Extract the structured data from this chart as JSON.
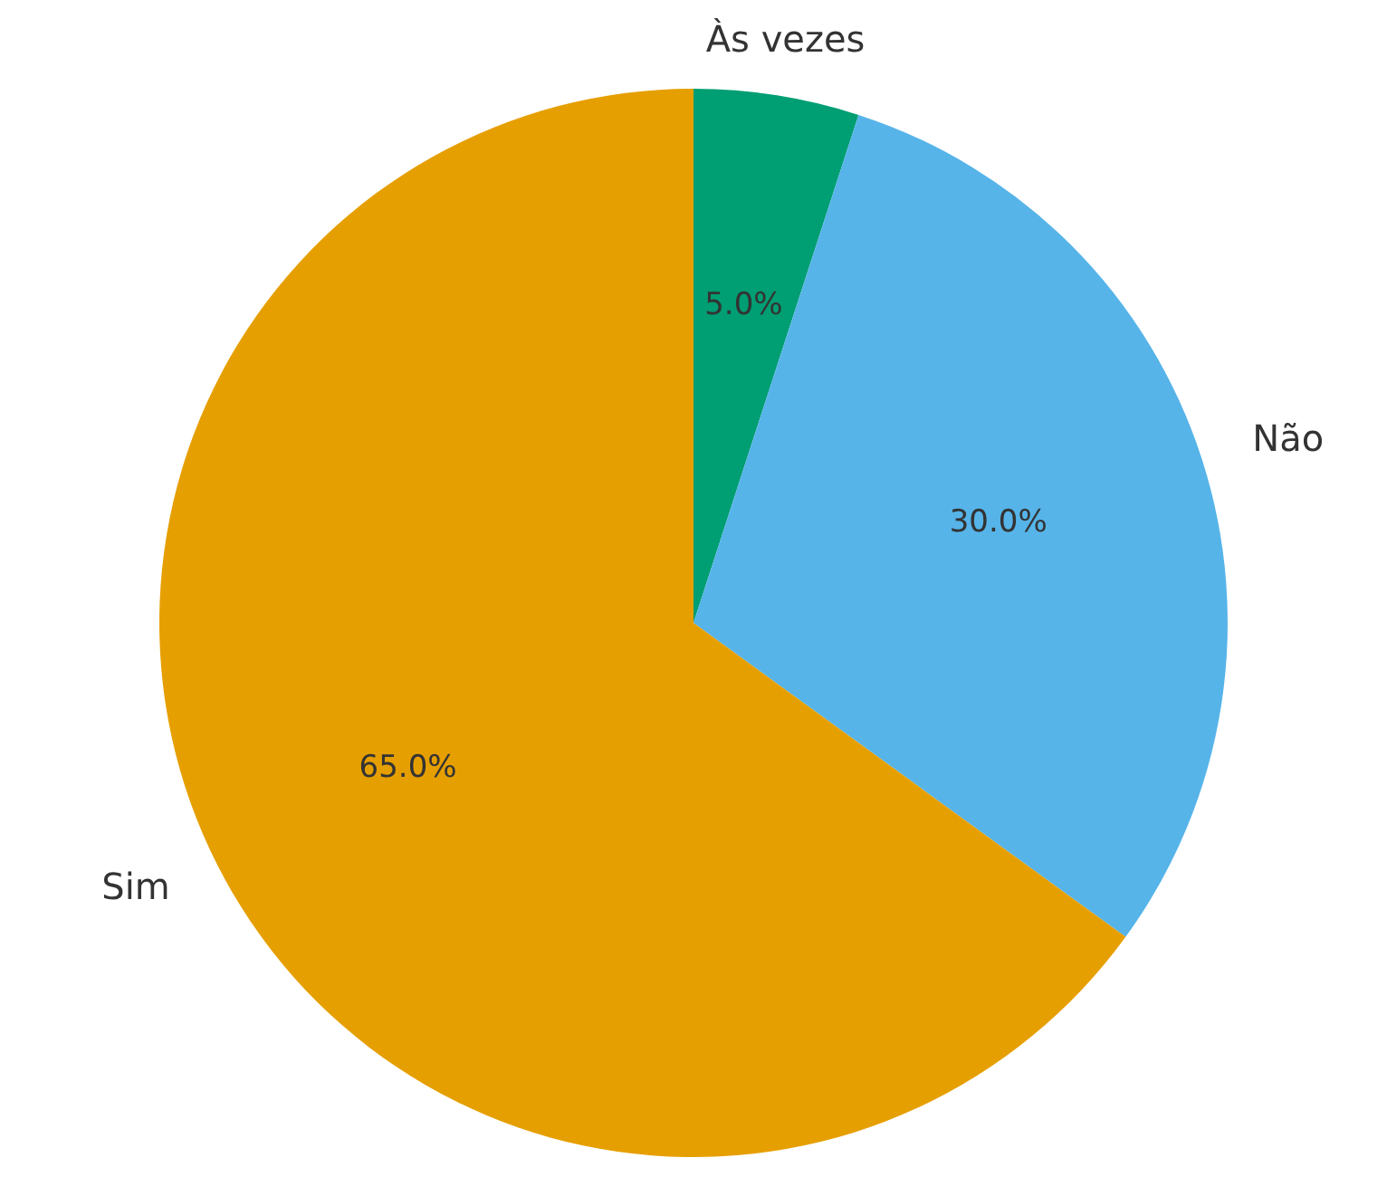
{
  "chart_data": {
    "type": "pie",
    "categories": [
      "Às vezes",
      "Não",
      "Sim"
    ],
    "values": [
      5,
      30,
      65
    ],
    "colors": [
      "#009e73",
      "#56b4e9",
      "#e69f00"
    ],
    "value_labels": [
      "5.0%",
      "30.0%",
      "65.0%"
    ],
    "legend": false
  }
}
